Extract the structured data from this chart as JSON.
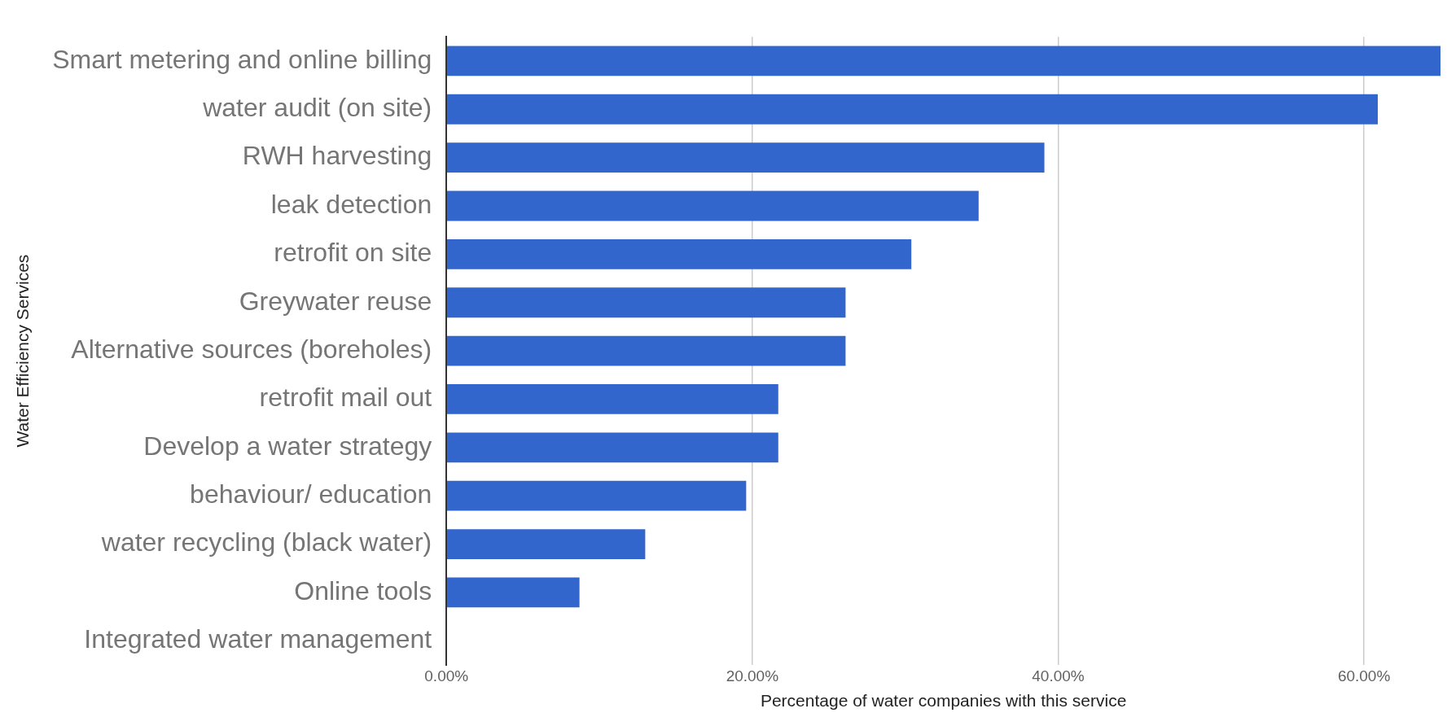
{
  "chart_data": {
    "type": "bar",
    "orientation": "horizontal",
    "xlabel": "Percentage of water companies with this service",
    "ylabel": "Water Efficiency Services",
    "categories": [
      "Smart metering and online billing",
      "water audit (on site)",
      "RWH harvesting",
      "leak detection",
      "retrofit on site",
      "Greywater reuse",
      "Alternative sources (boreholes)",
      "retrofit mail out",
      "Develop a water strategy",
      "behaviour/ education",
      "water recycling (black water)",
      "Online tools",
      "Integrated water management"
    ],
    "values": [
      65,
      60.9,
      39.1,
      34.8,
      30.4,
      26.1,
      26.1,
      21.7,
      21.7,
      19.6,
      13.0,
      8.7,
      0
    ],
    "color": "#3366cc",
    "xlim": [
      0,
      65
    ],
    "xticks": [
      {
        "value": 0,
        "label": "0.00%"
      },
      {
        "value": 20,
        "label": "20.00%"
      },
      {
        "value": 40,
        "label": "40.00%"
      },
      {
        "value": 60,
        "label": "60.00%"
      }
    ],
    "grid": "x",
    "legend": false
  }
}
